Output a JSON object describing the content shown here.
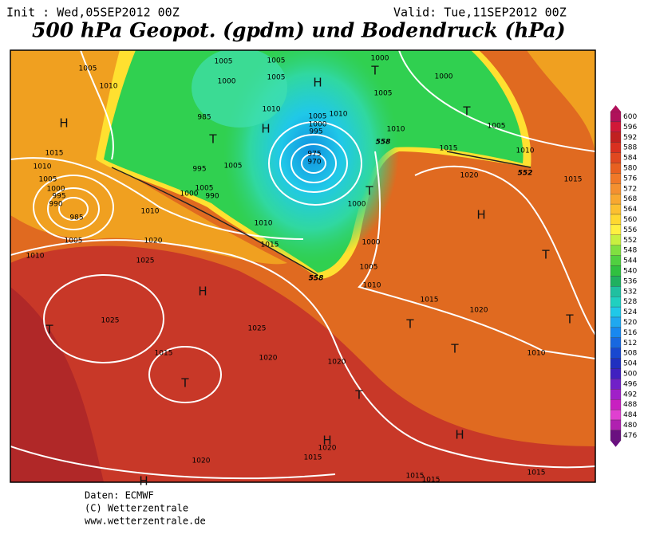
{
  "header": {
    "init": "Init : Wed,05SEP2012 00Z",
    "valid": "Valid: Tue,11SEP2012 00Z",
    "title": "500 hPa Geopot. (gpdm) und Bodendruck (hPa)"
  },
  "colorbar": [
    600,
    596,
    592,
    588,
    584,
    580,
    576,
    572,
    568,
    564,
    560,
    556,
    552,
    548,
    544,
    540,
    536,
    532,
    528,
    524,
    520,
    516,
    512,
    508,
    504,
    500,
    496,
    492,
    488,
    484,
    480,
    476
  ],
  "map_labels": [
    "1005",
    "1010",
    "1005",
    "1005",
    "1000",
    "1005",
    "1000",
    "1000",
    "1005",
    "1010",
    "1010",
    "985",
    "1005",
    "1000",
    "995",
    "1010",
    "1015",
    "1010",
    "1005",
    "1015",
    "1010",
    "1005",
    "1000",
    "995",
    "990",
    "985",
    "1005",
    "1010",
    "1010",
    "1020",
    "1025",
    "1025",
    "1025",
    "1020",
    "1020",
    "1015",
    "1020",
    "1020",
    "1015",
    "1015",
    "1015",
    "1015",
    "1010",
    "1020",
    "1015",
    "1010",
    "1005",
    "1000",
    "1000",
    "1015",
    "1010",
    "1020",
    "1015",
    "995",
    "1005",
    "1005",
    "1000",
    "990",
    "975",
    "970",
    "558",
    "552",
    "558"
  ],
  "pressure_centers": [
    "H",
    "T",
    "T",
    "H",
    "H",
    "T",
    "H",
    "T",
    "T",
    "T",
    "H",
    "T",
    "T",
    "T",
    "T",
    "T",
    "H",
    "H",
    "H"
  ],
  "footer": [
    "Daten: ECMWF",
    "(C) Wetterzentrale",
    "www.wetterzentrale.de"
  ]
}
